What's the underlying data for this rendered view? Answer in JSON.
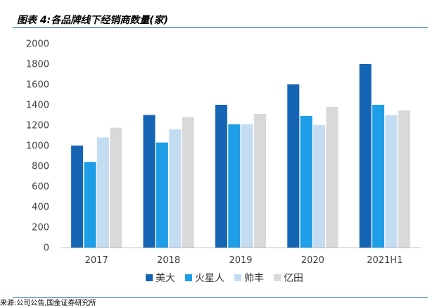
{
  "title": "图表 4:各品牌线下经销商数量(家)",
  "source": "来源:公司公告,国金证券研究所",
  "chart_data": {
    "type": "bar",
    "categories": [
      "2017",
      "2018",
      "2019",
      "2020",
      "2021H1"
    ],
    "series": [
      {
        "name": "美大",
        "color": "#1565b5",
        "values": [
          1000,
          1300,
          1400,
          1600,
          1800
        ]
      },
      {
        "name": "火星人",
        "color": "#1e9ee6",
        "values": [
          840,
          1030,
          1210,
          1290,
          1400
        ]
      },
      {
        "name": "帅丰",
        "color": "#c4dcf2",
        "values": [
          1080,
          1160,
          1210,
          1200,
          1300
        ]
      },
      {
        "name": "亿田",
        "color": "#d9d9d9",
        "values": [
          1175,
          1280,
          1310,
          1380,
          1345
        ]
      }
    ],
    "ylim": [
      0,
      2000
    ],
    "yticks": [
      0,
      200,
      400,
      600,
      800,
      1000,
      1200,
      1400,
      1600,
      1800,
      2000
    ],
    "legend_position": "bottom",
    "grid": false
  }
}
